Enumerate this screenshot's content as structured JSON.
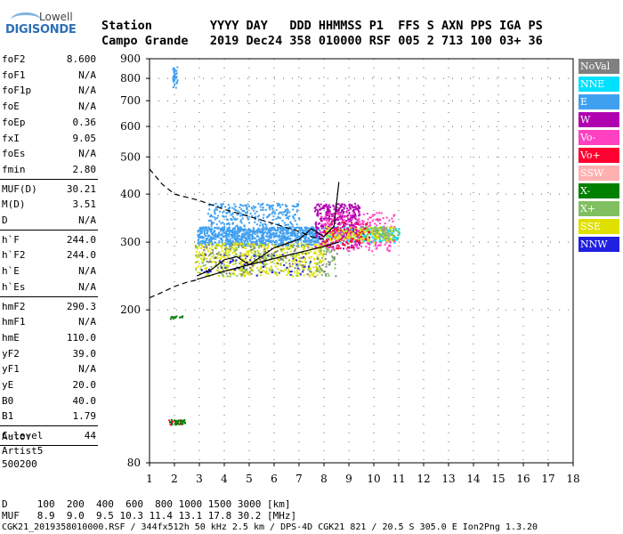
{
  "logo": {
    "line1": "Lowell",
    "line2": "DIGISONDE"
  },
  "header": {
    "row1": "Station        YYYY DAY   DDD HHMMSS P1  FFS S AXN PPS IGA PS",
    "row2": "Campo Grande   2019 Dec24 358 010000 RSF 005 2 713 100 03+ 36"
  },
  "params_group1": [
    {
      "k": "foF2",
      "v": "8.600"
    },
    {
      "k": "foF1",
      "v": "N/A"
    },
    {
      "k": "foF1p",
      "v": "N/A"
    },
    {
      "k": "foE",
      "v": "N/A"
    },
    {
      "k": "foEp",
      "v": "0.36"
    },
    {
      "k": "fxI",
      "v": "9.05"
    },
    {
      "k": "foEs",
      "v": "N/A"
    },
    {
      "k": "fmin",
      "v": "2.80"
    }
  ],
  "params_group2": [
    {
      "k": "MUF(D)",
      "v": "30.21"
    },
    {
      "k": "M(D)",
      "v": "3.51"
    },
    {
      "k": "D",
      "v": "N/A"
    }
  ],
  "params_group3": [
    {
      "k": "h`F",
      "v": "244.0"
    },
    {
      "k": "h`F2",
      "v": "244.0"
    },
    {
      "k": "h`E",
      "v": "N/A"
    },
    {
      "k": "h`Es",
      "v": "N/A"
    }
  ],
  "params_group4": [
    {
      "k": "hmF2",
      "v": "290.3"
    },
    {
      "k": "hmF1",
      "v": "N/A"
    },
    {
      "k": "hmE",
      "v": "110.0"
    },
    {
      "k": "yF2",
      "v": "39.0"
    },
    {
      "k": "yF1",
      "v": "N/A"
    },
    {
      "k": "yE",
      "v": "20.0"
    },
    {
      "k": "B0",
      "v": "40.0"
    },
    {
      "k": "B1",
      "v": "1.79"
    }
  ],
  "params_group5": [
    {
      "k": "C-level",
      "v": "44"
    }
  ],
  "auto": {
    "label": "Auto:",
    "name": "Artist5",
    "code": "500200"
  },
  "legend": [
    {
      "label": "NoVal",
      "color": "#808080"
    },
    {
      "label": "NNE",
      "color": "#00e0ff"
    },
    {
      "label": "E",
      "color": "#40a0f0"
    },
    {
      "label": "W",
      "color": "#b000b0"
    },
    {
      "label": "Vo-",
      "color": "#ff40c0"
    },
    {
      "label": "Vo+",
      "color": "#ff0030"
    },
    {
      "label": "SSW",
      "color": "#ffb0b0"
    },
    {
      "label": "X-",
      "color": "#008000"
    },
    {
      "label": "X+",
      "color": "#80c060"
    },
    {
      "label": "SSE",
      "color": "#e0e000"
    },
    {
      "label": "NNW",
      "color": "#2020e0"
    }
  ],
  "footer": {
    "row1": "D     100  200  400  600  800 1000 1500 3000 [km]",
    "row2": "MUF   8.9  9.0  9.5 10.3 11.4 13.1 17.8 30.2 [MHz]",
    "row3": "CGK21_2019358010000.RSF / 344fx512h 50 kHz 2.5 km / DPS-4D CGK21 821 / 20.5 S 305.0 E Ion2Png 1.3.20"
  },
  "chart_data": {
    "type": "scatter",
    "title": "",
    "xlabel": "",
    "ylabel": "",
    "xlim": [
      1,
      18
    ],
    "ylim": [
      80,
      900
    ],
    "y_scale": "log",
    "xticks": [
      1,
      2,
      3,
      4,
      5,
      6,
      7,
      8,
      9,
      10,
      11,
      12,
      13,
      14,
      15,
      16,
      17,
      18
    ],
    "yticks": [
      80,
      200,
      300,
      400,
      500,
      600,
      700,
      800,
      900
    ],
    "series": [
      {
        "color": "#40a0f0",
        "clusters": [
          {
            "x": [
              2.9,
              7.8
            ],
            "y": [
              295,
              330
            ],
            "n": 900
          },
          {
            "x": [
              3.3,
              7.0
            ],
            "y": [
              330,
              380
            ],
            "n": 260
          },
          {
            "x": [
              1.9,
              2.1
            ],
            "y": [
              760,
              860
            ],
            "n": 40
          }
        ]
      },
      {
        "color": "#00e0ff",
        "clusters": [
          {
            "x": [
              7.9,
              11.0
            ],
            "y": [
              300,
              330
            ],
            "n": 220
          }
        ]
      },
      {
        "color": "#b000b0",
        "clusters": [
          {
            "x": [
              7.6,
              9.4
            ],
            "y": [
              290,
              380
            ],
            "n": 380
          }
        ]
      },
      {
        "color": "#ff40c0",
        "clusters": [
          {
            "x": [
              7.8,
              10.8
            ],
            "y": [
              285,
              360
            ],
            "n": 260
          }
        ]
      },
      {
        "color": "#e0e000",
        "clusters": [
          {
            "x": [
              2.8,
              8.0
            ],
            "y": [
              245,
              300
            ],
            "n": 500
          },
          {
            "x": [
              8.0,
              10.8
            ],
            "y": [
              300,
              330
            ],
            "n": 160
          }
        ]
      },
      {
        "color": "#80c060",
        "clusters": [
          {
            "x": [
              2.8,
              8.5
            ],
            "y": [
              245,
              295
            ],
            "n": 180
          },
          {
            "x": [
              9.5,
              11.0
            ],
            "y": [
              305,
              330
            ],
            "n": 80
          }
        ]
      },
      {
        "color": "#ff0030",
        "clusters": [
          {
            "x": [
              8.0,
              9.8
            ],
            "y": [
              290,
              340
            ],
            "n": 70
          },
          {
            "x": [
              1.75,
              2.3
            ],
            "y": [
              101,
              104
            ],
            "n": 18
          }
        ]
      },
      {
        "color": "#008000",
        "clusters": [
          {
            "x": [
              1.75,
              2.4
            ],
            "y": [
              101,
              104
            ],
            "n": 30
          },
          {
            "x": [
              1.8,
              2.3
            ],
            "y": [
              190,
              194
            ],
            "n": 12
          }
        ]
      },
      {
        "color": "#2020e0",
        "clusters": [
          {
            "x": [
              3.0,
              7.5
            ],
            "y": [
              245,
              280
            ],
            "n": 60
          }
        ]
      },
      {
        "color": "#808080",
        "clusters": [
          {
            "x": [
              3.0,
              8.5
            ],
            "y": [
              245,
              300
            ],
            "n": 120
          }
        ]
      }
    ],
    "lines": [
      {
        "style": "dashed",
        "x": [
          1.0,
          1.5,
          2.0,
          3.0,
          4.0,
          5.0,
          6.0,
          7.0,
          7.5,
          8.0
        ],
        "y": [
          465,
          425,
          400,
          385,
          365,
          350,
          335,
          320,
          310,
          305
        ]
      },
      {
        "style": "dashed",
        "x": [
          1.0,
          1.5,
          2.0,
          2.5,
          3.0
        ],
        "y": [
          215,
          222,
          230,
          236,
          240
        ]
      },
      {
        "style": "solid",
        "x": [
          2.9,
          4.0,
          5.0,
          6.0,
          7.0,
          8.0,
          8.6
        ],
        "y": [
          240,
          252,
          262,
          272,
          282,
          292,
          300
        ]
      },
      {
        "style": "solid",
        "x": [
          2.9,
          3.5,
          4.0,
          4.5,
          5.0,
          6.0,
          7.0,
          7.5,
          8.0,
          8.4,
          8.6
        ],
        "y": [
          245,
          255,
          270,
          275,
          262,
          290,
          305,
          325,
          310,
          330,
          430
        ]
      }
    ]
  }
}
